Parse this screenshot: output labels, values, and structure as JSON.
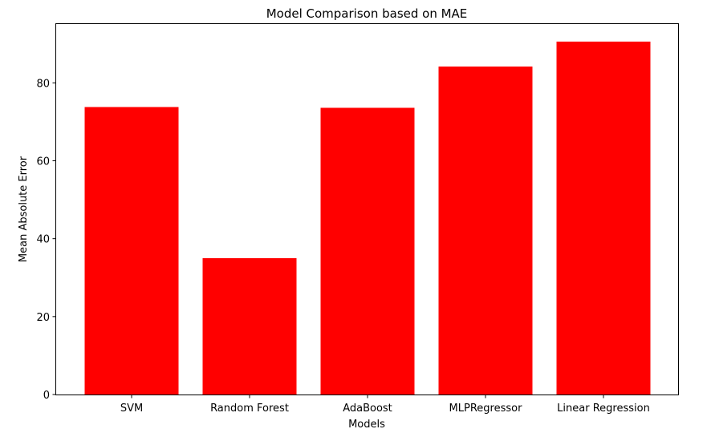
{
  "chart_data": {
    "type": "bar",
    "title": "Model Comparison based on MAE",
    "xlabel": "Models",
    "ylabel": "Mean Absolute Error",
    "categories": [
      "SVM",
      "Random Forest",
      "AdaBoost",
      "MLPRegressor",
      "Linear Regression"
    ],
    "values": [
      73.8,
      35.0,
      73.6,
      84.2,
      90.6
    ],
    "ylim": [
      0,
      95.1
    ],
    "yticks": [
      0,
      20,
      40,
      60,
      80
    ],
    "ytick_labels": [
      "0",
      "20",
      "40",
      "60",
      "80"
    ],
    "bar_color": "#ff0000",
    "grid": false,
    "legend": false
  }
}
